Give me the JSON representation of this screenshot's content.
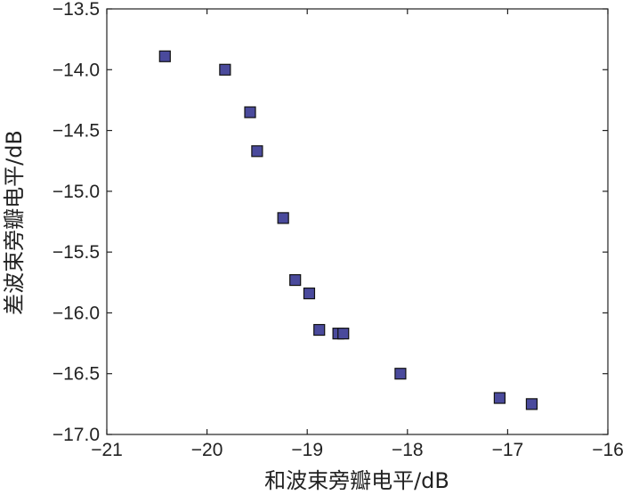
{
  "chart_data": {
    "type": "scatter",
    "xlabel": "和波束旁瓣电平/dB",
    "ylabel": "差波束旁瓣电平/dB",
    "xlim": [
      -21,
      -16
    ],
    "ylim": [
      -17.0,
      -13.5
    ],
    "xticks": [
      -21,
      -20,
      -19,
      -18,
      -17,
      -16
    ],
    "xtick_labels": [
      "−21",
      "−20",
      "−19",
      "−18",
      "−17",
      "−16"
    ],
    "yticks": [
      -13.5,
      -14.0,
      -14.5,
      -15.0,
      -15.5,
      -16.0,
      -16.5,
      -17.0
    ],
    "ytick_labels": [
      "−13.5",
      "−14.0",
      "−14.5",
      "−15.0",
      "−15.5",
      "−16.0",
      "−16.5",
      "−17.0"
    ],
    "grid": false,
    "marker": "square",
    "marker_color": "#4a4a9c",
    "marker_edge_color": "#111111",
    "series": [
      {
        "points": [
          {
            "x": -20.42,
            "y": -13.89
          },
          {
            "x": -19.82,
            "y": -14.0
          },
          {
            "x": -19.57,
            "y": -14.35
          },
          {
            "x": -19.5,
            "y": -14.67
          },
          {
            "x": -19.24,
            "y": -15.22
          },
          {
            "x": -19.12,
            "y": -15.73
          },
          {
            "x": -18.98,
            "y": -15.84
          },
          {
            "x": -18.88,
            "y": -16.14
          },
          {
            "x": -18.69,
            "y": -16.17
          },
          {
            "x": -18.64,
            "y": -16.17
          },
          {
            "x": -18.07,
            "y": -16.5
          },
          {
            "x": -17.08,
            "y": -16.7
          },
          {
            "x": -16.76,
            "y": -16.75
          }
        ]
      }
    ]
  }
}
